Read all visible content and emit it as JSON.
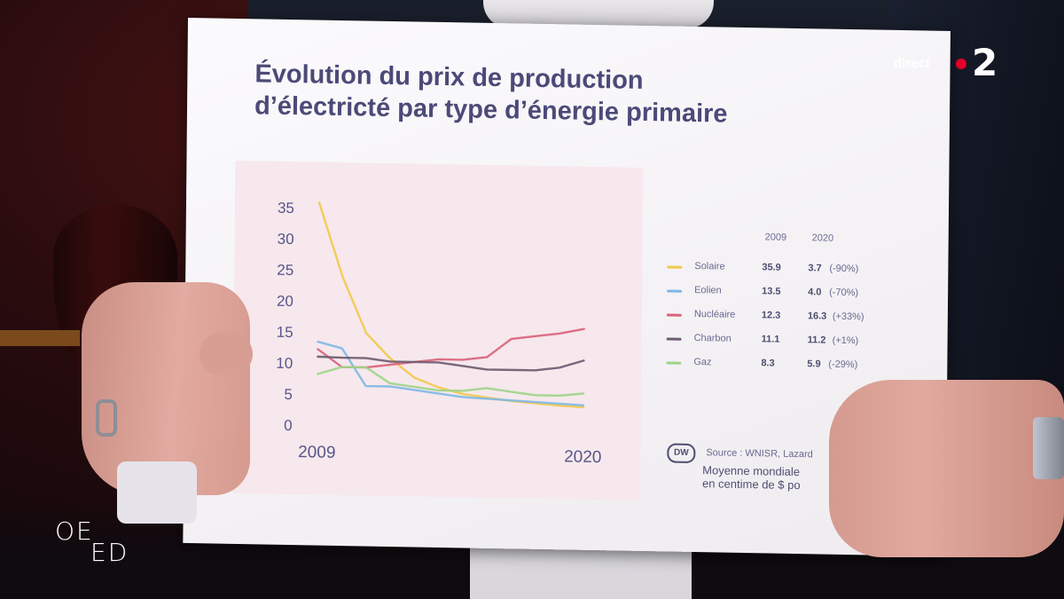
{
  "broadcast": {
    "live_label": "direct",
    "channel_number": "2",
    "show_logo_line1": "OE",
    "show_logo_line2": "ED",
    "live_dot_color": "#e4002b"
  },
  "board": {
    "title_line1": "Évolution du prix de production",
    "title_line2": "d’électricté par type d’énergie primaire",
    "legend_header_2009": "2009",
    "legend_header_2020": "2020",
    "legend": [
      {
        "name": "Solaire",
        "v2009": "35.9",
        "v2020": "3.7",
        "change": "(-90%)",
        "color": "#f2c94c"
      },
      {
        "name": "Eolien",
        "v2009": "13.5",
        "v2020": "4.0",
        "change": "(-70%)",
        "color": "#7fb8e6"
      },
      {
        "name": "Nucléaire",
        "v2009": "12.3",
        "v2020": "16.3",
        "change": "(+33%)",
        "color": "#d9647c"
      },
      {
        "name": "Charbon",
        "v2009": "11.1",
        "v2020": "11.2",
        "change": "(+1%)",
        "color": "#6e5c70"
      },
      {
        "name": "Gaz",
        "v2009": "8.3",
        "v2020": "5.9",
        "change": "(-29%)",
        "color": "#9ed48a"
      }
    ],
    "source_logo": "DW",
    "source": "Source : WNISR, Lazard",
    "note_line1": "Moyenne mondiale",
    "note_line2": "en centime de $ po"
  },
  "chart_data": {
    "type": "line",
    "title": "Évolution du prix de production d’électricté par type d’énergie primaire",
    "xlabel": "",
    "ylabel": "",
    "x": [
      2009,
      2010,
      2011,
      2012,
      2013,
      2014,
      2015,
      2016,
      2017,
      2018,
      2019,
      2020
    ],
    "x_tick_labels": [
      "2009",
      "2020"
    ],
    "y_ticks": [
      "0",
      "5",
      "10",
      "15",
      "20",
      "25",
      "30",
      "35"
    ],
    "ylim": [
      0,
      35
    ],
    "series": [
      {
        "name": "Solaire",
        "color": "#f2c94c",
        "values": [
          35.9,
          24,
          15,
          11,
          8,
          6.5,
          5.5,
          5,
          4.5,
          4.2,
          3.9,
          3.7
        ]
      },
      {
        "name": "Eolien",
        "color": "#7fb8e6",
        "values": [
          13.5,
          12.5,
          6.5,
          6.5,
          6,
          5.5,
          5,
          4.8,
          4.6,
          4.4,
          4.2,
          4.0
        ]
      },
      {
        "name": "Nucléaire",
        "color": "#d9647c",
        "values": [
          12.3,
          9.5,
          9.5,
          10,
          10.5,
          11,
          11,
          11.5,
          14.5,
          15,
          15.5,
          16.3
        ]
      },
      {
        "name": "Charbon",
        "color": "#6e5c70",
        "values": [
          11.1,
          11,
          11,
          10.5,
          10.5,
          10.5,
          10,
          9.5,
          9.5,
          9.5,
          10,
          11.2
        ]
      },
      {
        "name": "Gaz",
        "color": "#9ed48a",
        "values": [
          8.3,
          9.5,
          9.5,
          7,
          6.5,
          6,
          6,
          6.5,
          6,
          5.5,
          5.5,
          5.9
        ]
      }
    ],
    "legend_position": "right",
    "grid": false
  }
}
